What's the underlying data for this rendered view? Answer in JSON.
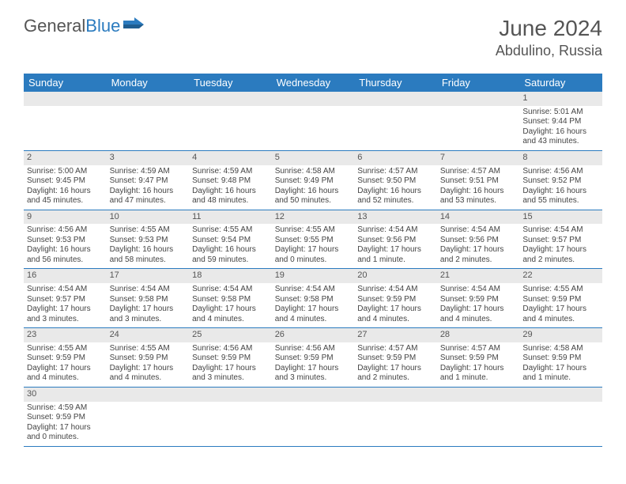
{
  "brand": {
    "part1": "General",
    "part2": "Blue"
  },
  "title": "June 2024",
  "location": "Abdulino, Russia",
  "colors": {
    "accent": "#2b7bbf",
    "header_text": "#555",
    "grid_bg": "#e9e9e9"
  },
  "weekdays": [
    "Sunday",
    "Monday",
    "Tuesday",
    "Wednesday",
    "Thursday",
    "Friday",
    "Saturday"
  ],
  "weeks": [
    [
      null,
      null,
      null,
      null,
      null,
      null,
      {
        "n": "1",
        "sr": "Sunrise: 5:01 AM",
        "ss": "Sunset: 9:44 PM",
        "d1": "Daylight: 16 hours",
        "d2": "and 43 minutes."
      }
    ],
    [
      {
        "n": "2",
        "sr": "Sunrise: 5:00 AM",
        "ss": "Sunset: 9:45 PM",
        "d1": "Daylight: 16 hours",
        "d2": "and 45 minutes."
      },
      {
        "n": "3",
        "sr": "Sunrise: 4:59 AM",
        "ss": "Sunset: 9:47 PM",
        "d1": "Daylight: 16 hours",
        "d2": "and 47 minutes."
      },
      {
        "n": "4",
        "sr": "Sunrise: 4:59 AM",
        "ss": "Sunset: 9:48 PM",
        "d1": "Daylight: 16 hours",
        "d2": "and 48 minutes."
      },
      {
        "n": "5",
        "sr": "Sunrise: 4:58 AM",
        "ss": "Sunset: 9:49 PM",
        "d1": "Daylight: 16 hours",
        "d2": "and 50 minutes."
      },
      {
        "n": "6",
        "sr": "Sunrise: 4:57 AM",
        "ss": "Sunset: 9:50 PM",
        "d1": "Daylight: 16 hours",
        "d2": "and 52 minutes."
      },
      {
        "n": "7",
        "sr": "Sunrise: 4:57 AM",
        "ss": "Sunset: 9:51 PM",
        "d1": "Daylight: 16 hours",
        "d2": "and 53 minutes."
      },
      {
        "n": "8",
        "sr": "Sunrise: 4:56 AM",
        "ss": "Sunset: 9:52 PM",
        "d1": "Daylight: 16 hours",
        "d2": "and 55 minutes."
      }
    ],
    [
      {
        "n": "9",
        "sr": "Sunrise: 4:56 AM",
        "ss": "Sunset: 9:53 PM",
        "d1": "Daylight: 16 hours",
        "d2": "and 56 minutes."
      },
      {
        "n": "10",
        "sr": "Sunrise: 4:55 AM",
        "ss": "Sunset: 9:53 PM",
        "d1": "Daylight: 16 hours",
        "d2": "and 58 minutes."
      },
      {
        "n": "11",
        "sr": "Sunrise: 4:55 AM",
        "ss": "Sunset: 9:54 PM",
        "d1": "Daylight: 16 hours",
        "d2": "and 59 minutes."
      },
      {
        "n": "12",
        "sr": "Sunrise: 4:55 AM",
        "ss": "Sunset: 9:55 PM",
        "d1": "Daylight: 17 hours",
        "d2": "and 0 minutes."
      },
      {
        "n": "13",
        "sr": "Sunrise: 4:54 AM",
        "ss": "Sunset: 9:56 PM",
        "d1": "Daylight: 17 hours",
        "d2": "and 1 minute."
      },
      {
        "n": "14",
        "sr": "Sunrise: 4:54 AM",
        "ss": "Sunset: 9:56 PM",
        "d1": "Daylight: 17 hours",
        "d2": "and 2 minutes."
      },
      {
        "n": "15",
        "sr": "Sunrise: 4:54 AM",
        "ss": "Sunset: 9:57 PM",
        "d1": "Daylight: 17 hours",
        "d2": "and 2 minutes."
      }
    ],
    [
      {
        "n": "16",
        "sr": "Sunrise: 4:54 AM",
        "ss": "Sunset: 9:57 PM",
        "d1": "Daylight: 17 hours",
        "d2": "and 3 minutes."
      },
      {
        "n": "17",
        "sr": "Sunrise: 4:54 AM",
        "ss": "Sunset: 9:58 PM",
        "d1": "Daylight: 17 hours",
        "d2": "and 3 minutes."
      },
      {
        "n": "18",
        "sr": "Sunrise: 4:54 AM",
        "ss": "Sunset: 9:58 PM",
        "d1": "Daylight: 17 hours",
        "d2": "and 4 minutes."
      },
      {
        "n": "19",
        "sr": "Sunrise: 4:54 AM",
        "ss": "Sunset: 9:58 PM",
        "d1": "Daylight: 17 hours",
        "d2": "and 4 minutes."
      },
      {
        "n": "20",
        "sr": "Sunrise: 4:54 AM",
        "ss": "Sunset: 9:59 PM",
        "d1": "Daylight: 17 hours",
        "d2": "and 4 minutes."
      },
      {
        "n": "21",
        "sr": "Sunrise: 4:54 AM",
        "ss": "Sunset: 9:59 PM",
        "d1": "Daylight: 17 hours",
        "d2": "and 4 minutes."
      },
      {
        "n": "22",
        "sr": "Sunrise: 4:55 AM",
        "ss": "Sunset: 9:59 PM",
        "d1": "Daylight: 17 hours",
        "d2": "and 4 minutes."
      }
    ],
    [
      {
        "n": "23",
        "sr": "Sunrise: 4:55 AM",
        "ss": "Sunset: 9:59 PM",
        "d1": "Daylight: 17 hours",
        "d2": "and 4 minutes."
      },
      {
        "n": "24",
        "sr": "Sunrise: 4:55 AM",
        "ss": "Sunset: 9:59 PM",
        "d1": "Daylight: 17 hours",
        "d2": "and 4 minutes."
      },
      {
        "n": "25",
        "sr": "Sunrise: 4:56 AM",
        "ss": "Sunset: 9:59 PM",
        "d1": "Daylight: 17 hours",
        "d2": "and 3 minutes."
      },
      {
        "n": "26",
        "sr": "Sunrise: 4:56 AM",
        "ss": "Sunset: 9:59 PM",
        "d1": "Daylight: 17 hours",
        "d2": "and 3 minutes."
      },
      {
        "n": "27",
        "sr": "Sunrise: 4:57 AM",
        "ss": "Sunset: 9:59 PM",
        "d1": "Daylight: 17 hours",
        "d2": "and 2 minutes."
      },
      {
        "n": "28",
        "sr": "Sunrise: 4:57 AM",
        "ss": "Sunset: 9:59 PM",
        "d1": "Daylight: 17 hours",
        "d2": "and 1 minute."
      },
      {
        "n": "29",
        "sr": "Sunrise: 4:58 AM",
        "ss": "Sunset: 9:59 PM",
        "d1": "Daylight: 17 hours",
        "d2": "and 1 minute."
      }
    ],
    [
      {
        "n": "30",
        "sr": "Sunrise: 4:59 AM",
        "ss": "Sunset: 9:59 PM",
        "d1": "Daylight: 17 hours",
        "d2": "and 0 minutes."
      },
      null,
      null,
      null,
      null,
      null,
      null
    ]
  ]
}
